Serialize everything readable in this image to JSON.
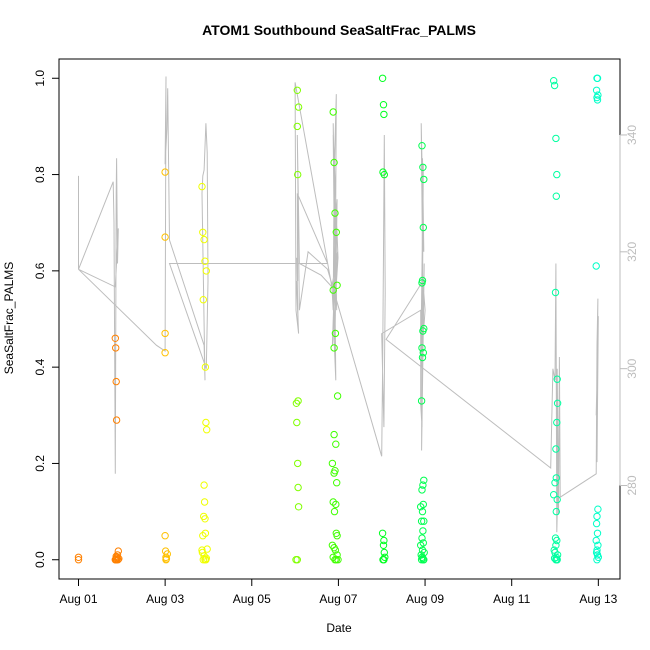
{
  "chart_data": {
    "type": "scatter",
    "title": "ATOM1 Southbound SeaSaltFrac_PALMS",
    "xlabel": "Date",
    "ylabel": "SeaSaltFrac_PALMS",
    "x_ticks": [
      "Aug 01",
      "Aug 03",
      "Aug 05",
      "Aug 07",
      "Aug 09",
      "Aug 11",
      "Aug 13"
    ],
    "x_tick_days": [
      1,
      3,
      5,
      7,
      9,
      11,
      13
    ],
    "xlim": [
      0.55,
      13.5
    ],
    "ylim": [
      -0.04,
      1.04
    ],
    "y_ticks": [
      0.0,
      0.2,
      0.4,
      0.6,
      0.8,
      1.0
    ],
    "y_tick_labels": [
      "0.0",
      "0.2",
      "0.4",
      "0.6",
      "0.8",
      "1.0"
    ],
    "y2_ticks": [
      280,
      300,
      320,
      340
    ],
    "y2_lim": [
      264,
      353
    ],
    "y2_color": "#bdbdbd",
    "grid": false,
    "series": [
      {
        "color": "#ff8000",
        "x": [
          1.0,
          1.0,
          1.85,
          1.86,
          1.87,
          1.88,
          1.88,
          1.89,
          1.9,
          1.91,
          1.92,
          1.93,
          1.85,
          1.86,
          1.88,
          1.87,
          1.89
        ],
        "y": [
          0.0,
          0.005,
          0.46,
          0.44,
          0.37,
          0.29,
          0.0,
          0.005,
          0.01,
          0.0,
          0.018,
          0.002,
          0.0,
          0.0,
          0.0,
          0.007,
          0.003
        ]
      },
      {
        "color": "#ffc000",
        "x": [
          3.0,
          3.0,
          3.0,
          3.0,
          3.0,
          3.02,
          3.02,
          3.05,
          3.01,
          3.03
        ],
        "y": [
          0.805,
          0.67,
          0.47,
          0.43,
          0.05,
          0.0,
          0.005,
          0.012,
          0.018,
          0.002
        ]
      },
      {
        "color": "#f0ff00",
        "x": [
          3.85,
          3.87,
          3.9,
          3.92,
          3.95,
          3.88,
          3.93,
          3.94,
          3.96,
          3.9,
          3.91,
          3.89,
          3.92,
          3.87,
          3.93,
          3.85,
          3.97,
          3.86,
          3.9,
          3.95,
          3.88,
          3.92,
          3.94
        ],
        "y": [
          0.775,
          0.68,
          0.665,
          0.62,
          0.6,
          0.54,
          0.4,
          0.285,
          0.27,
          0.155,
          0.12,
          0.09,
          0.085,
          0.05,
          0.055,
          0.02,
          0.022,
          0.015,
          0.008,
          0.003,
          0.0,
          0.0,
          0.0
        ]
      },
      {
        "color": "#80ff00",
        "x": [
          6.05,
          6.08,
          6.05,
          6.06,
          6.07,
          6.03,
          6.04,
          6.06,
          6.07,
          6.08,
          6.02,
          6.05
        ],
        "y": [
          0.975,
          0.94,
          0.9,
          0.8,
          0.33,
          0.325,
          0.285,
          0.2,
          0.15,
          0.11,
          0.0,
          0.0
        ]
      },
      {
        "color": "#40ff00",
        "x": [
          6.88,
          6.9,
          6.92,
          6.95,
          6.97,
          6.88,
          6.93,
          6.9,
          6.98,
          6.9,
          6.94,
          6.86,
          6.92,
          6.9,
          6.96,
          6.88,
          6.94,
          6.91,
          6.95,
          6.97,
          6.86,
          6.9,
          6.93,
          6.97,
          6.88,
          6.92,
          6.95,
          6.99
        ],
        "y": [
          0.93,
          0.825,
          0.72,
          0.68,
          0.57,
          0.56,
          0.47,
          0.44,
          0.34,
          0.26,
          0.24,
          0.2,
          0.185,
          0.18,
          0.16,
          0.12,
          0.115,
          0.1,
          0.055,
          0.05,
          0.03,
          0.025,
          0.02,
          0.01,
          0.005,
          0.0,
          0.0,
          0.0
        ]
      },
      {
        "color": "#00ff20",
        "x": [
          8.02,
          8.04,
          8.05,
          8.03,
          8.06,
          8.02,
          8.05,
          8.04,
          8.06,
          8.07,
          8.03,
          8.05
        ],
        "y": [
          1.0,
          0.945,
          0.925,
          0.805,
          0.8,
          0.055,
          0.04,
          0.03,
          0.015,
          0.005,
          0.0,
          0.0
        ]
      },
      {
        "color": "#00ff50",
        "x": [
          8.93,
          8.95,
          8.97,
          8.96,
          8.94,
          8.93,
          8.97,
          8.95,
          8.93,
          8.96,
          8.94,
          8.92,
          8.97,
          8.95,
          8.93,
          8.96,
          8.9,
          8.94,
          8.97,
          8.92,
          8.95,
          8.93,
          8.96,
          8.9,
          8.94,
          8.98,
          8.91,
          8.93,
          8.95,
          8.97,
          8.92,
          8.96
        ],
        "y": [
          0.86,
          0.815,
          0.79,
          0.69,
          0.58,
          0.575,
          0.48,
          0.475,
          0.44,
          0.43,
          0.42,
          0.33,
          0.165,
          0.155,
          0.145,
          0.115,
          0.11,
          0.1,
          0.08,
          0.08,
          0.06,
          0.045,
          0.035,
          0.03,
          0.02,
          0.015,
          0.01,
          0.005,
          0.003,
          0.0,
          0.0,
          0.0
        ]
      },
      {
        "color": "#00ffa0",
        "x": [
          11.97,
          11.99,
          12.02,
          12.04,
          12.03,
          12.01,
          12.05,
          12.06,
          12.04,
          12.02,
          12.03,
          12.0,
          11.97,
          12.05,
          12.03,
          12.01,
          12.04,
          12.02,
          11.98,
          12.0,
          12.06,
          12.03,
          11.99,
          12.05,
          12.02,
          12.04
        ],
        "y": [
          0.995,
          0.985,
          0.875,
          0.8,
          0.755,
          0.555,
          0.375,
          0.325,
          0.285,
          0.23,
          0.17,
          0.16,
          0.135,
          0.125,
          0.1,
          0.045,
          0.04,
          0.03,
          0.02,
          0.015,
          0.01,
          0.005,
          0.003,
          0.0,
          0.0,
          0.0
        ]
      },
      {
        "color": "#00ffc8",
        "x": [
          12.97,
          12.98,
          12.96,
          12.99,
          12.97,
          12.98,
          12.95,
          12.99,
          12.97,
          12.96,
          12.98,
          12.95,
          12.99,
          12.97,
          12.96,
          12.98,
          13.0,
          12.97
        ],
        "y": [
          1.0,
          1.0,
          0.975,
          0.965,
          0.96,
          0.955,
          0.61,
          0.105,
          0.09,
          0.075,
          0.055,
          0.04,
          0.03,
          0.02,
          0.015,
          0.01,
          0.005,
          0.0
        ]
      }
    ],
    "line_series": {
      "color": "#bdbdbd",
      "axis": "right",
      "x": [
        1.0,
        1.0,
        1.8,
        1.82,
        1.83,
        1.85,
        1.87,
        1.88,
        1.9,
        1.92,
        1.85,
        1.0,
        2.8,
        3.0,
        3.02,
        3.0,
        3.04,
        3.06,
        3.08,
        3.1,
        3.9,
        3.92,
        3.85,
        3.87,
        3.9,
        3.94,
        3.97,
        3.99,
        3.95,
        3.1,
        6.75,
        6.05,
        6.06,
        6.04,
        6.07,
        6.03,
        6.08,
        6.02,
        6.0,
        6.85,
        6.88,
        6.9,
        6.95,
        6.92,
        6.97,
        6.86,
        6.99,
        6.88,
        6.93,
        6.9,
        6.96,
        6.88,
        6.94,
        6.9,
        6.98,
        6.85,
        6.6,
        6.1,
        6.05,
        6.1,
        6.3,
        6.75,
        8.0,
        8.02,
        8.04,
        8.06,
        8.08,
        8.05,
        8.0,
        8.9,
        8.9,
        8.93,
        8.95,
        8.91,
        8.97,
        8.94,
        8.92,
        8.98,
        8.93,
        8.96,
        8.9,
        9.0,
        8.95,
        8.1,
        11.9,
        11.95,
        12.0,
        12.02,
        12.04,
        12.06,
        12.05,
        12.08,
        12.1,
        12.12,
        12.95,
        12.97,
        12.99,
        12.96,
        12.98,
        12.95,
        13.0,
        12.97
      ],
      "y": [
        333,
        317,
        332,
        325,
        308,
        282,
        330,
        336,
        318,
        324,
        314,
        317,
        304,
        303,
        350,
        335,
        341,
        348,
        335,
        322,
        304,
        298,
        330,
        333,
        334,
        342,
        337,
        315,
        300,
        318,
        318,
        330,
        315,
        319,
        308,
        315,
        306,
        310,
        349,
        314,
        310,
        333,
        347,
        305,
        329,
        304,
        319,
        340,
        303,
        322,
        310,
        342,
        298,
        305,
        320,
        314,
        316,
        318,
        340,
        310,
        320,
        317,
        285,
        300,
        320,
        340,
        313,
        290,
        306,
        310,
        294,
        290,
        312,
        342,
        320,
        336,
        286,
        318,
        298,
        335,
        300,
        310,
        315,
        305,
        283,
        300,
        298,
        318,
        272,
        278,
        300,
        275,
        302,
        278,
        282,
        304,
        312,
        286,
        302,
        292,
        309,
        284
      ]
    }
  }
}
